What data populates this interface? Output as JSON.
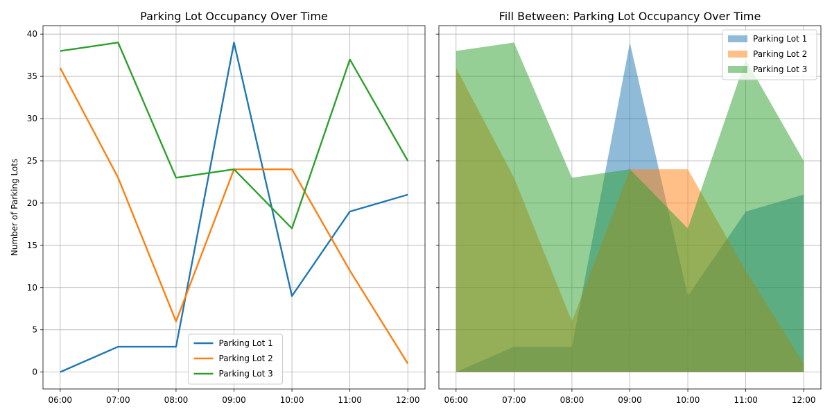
{
  "chart_data": [
    {
      "type": "line",
      "title": "Parking Lot Occupancy Over Time",
      "xlabel": "",
      "ylabel": "Number of Parking Lots",
      "categories": [
        "06:00",
        "07:00",
        "08:00",
        "09:00",
        "10:00",
        "11:00",
        "12:00"
      ],
      "ylim": [
        -2,
        41
      ],
      "yticks": [
        0,
        5,
        10,
        15,
        20,
        25,
        30,
        35,
        40
      ],
      "grid": true,
      "legend_position": "bottom-center",
      "series": [
        {
          "name": "Parking Lot 1",
          "color": "#1f77b4",
          "values": [
            0,
            3,
            3,
            39,
            9,
            19,
            21
          ]
        },
        {
          "name": "Parking Lot 2",
          "color": "#ff7f0e",
          "values": [
            36,
            23,
            6,
            24,
            24,
            12,
            1
          ]
        },
        {
          "name": "Parking Lot 3",
          "color": "#2ca02c",
          "values": [
            38,
            39,
            23,
            24,
            17,
            37,
            25
          ]
        }
      ]
    },
    {
      "type": "area",
      "title": "Fill Between: Parking Lot Occupancy Over Time",
      "xlabel": "",
      "ylabel": "",
      "categories": [
        "06:00",
        "07:00",
        "08:00",
        "09:00",
        "10:00",
        "11:00",
        "12:00"
      ],
      "ylim": [
        -2,
        41
      ],
      "yticks": [
        0,
        5,
        10,
        15,
        20,
        25,
        30,
        35,
        40
      ],
      "grid": true,
      "shared_y": true,
      "fill_alpha": 0.5,
      "legend_position": "top-right",
      "series": [
        {
          "name": "Parking Lot 1",
          "color": "#1f77b4",
          "values": [
            0,
            3,
            3,
            39,
            9,
            19,
            21
          ]
        },
        {
          "name": "Parking Lot 2",
          "color": "#ff7f0e",
          "values": [
            36,
            23,
            6,
            24,
            24,
            12,
            1
          ]
        },
        {
          "name": "Parking Lot 3",
          "color": "#2ca02c",
          "values": [
            38,
            39,
            23,
            24,
            17,
            37,
            25
          ]
        }
      ]
    }
  ]
}
